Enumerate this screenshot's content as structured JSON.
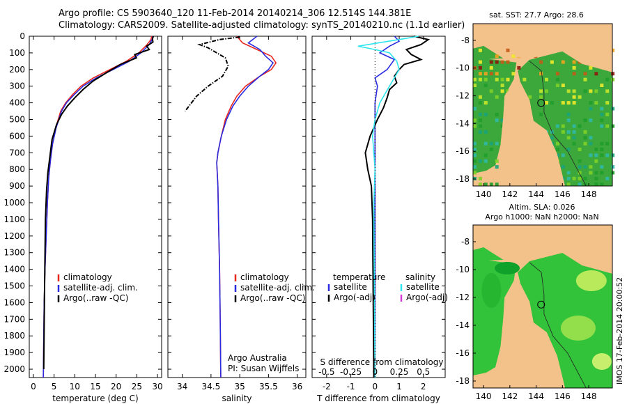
{
  "header": {
    "line1": "Argo profile: CS 5903640_120 11-Feb-2014 20140214_306 12.514S 144.381E",
    "line2": "Climatology: CARS2009. Satellite-adjusted climatology: synTS_20140210.nc (1.1d earlier)"
  },
  "colors": {
    "climatology": "#e8261e",
    "satellite": "#2a2ae0",
    "argo": "#000000",
    "argo_adj_salinity": "#d63ad6",
    "salinity_sat": "#2ee6ee"
  },
  "footer": {
    "timestamp": "IMOS 17-Feb-2014 20:00:52"
  },
  "chart_data": [
    {
      "type": "line",
      "id": "temperature",
      "xlabel": "temperature (deg C)",
      "ylabel": "",
      "xlim": [
        -1,
        31
      ],
      "ylim": [
        2050,
        0
      ],
      "xticks": [
        0,
        5,
        10,
        15,
        20,
        25,
        30
      ],
      "yticks": [
        0,
        100,
        200,
        300,
        400,
        500,
        600,
        700,
        800,
        900,
        1000,
        1100,
        1200,
        1300,
        1400,
        1500,
        1600,
        1700,
        1800,
        1900,
        2000
      ],
      "legend": [
        "climatology",
        "satellite-adj. clim.",
        "Argo(..raw -QC)"
      ],
      "series": [
        {
          "name": "climatology",
          "color": "#e8261e",
          "x": [
            28.6,
            28.4,
            27.5,
            25.5,
            22.5,
            18.5,
            14.5,
            11.5,
            9.5,
            7.8,
            6.6,
            5.4,
            4.6,
            4.1,
            3.7,
            3.4,
            3.1,
            2.8,
            2.6,
            2.5,
            2.4
          ],
          "y": [
            0,
            20,
            50,
            100,
            150,
            200,
            250,
            300,
            350,
            400,
            450,
            550,
            650,
            750,
            850,
            1000,
            1200,
            1400,
            1600,
            1800,
            2050
          ]
        },
        {
          "name": "satellite-adj. clim.",
          "color": "#2a2ae0",
          "x": [
            28.9,
            28.7,
            28.0,
            26.0,
            23.2,
            19.3,
            15.2,
            12.0,
            9.9,
            8.0,
            6.8,
            5.5,
            4.6,
            4.1,
            3.7,
            3.4,
            3.1,
            2.8,
            2.6,
            2.5,
            2.4
          ],
          "y": [
            0,
            20,
            50,
            100,
            150,
            200,
            250,
            300,
            350,
            400,
            450,
            550,
            650,
            750,
            850,
            1000,
            1200,
            1400,
            1600,
            1800,
            2050
          ]
        },
        {
          "name": "Argo(..raw -QC)",
          "color": "#000000",
          "x": [
            29.0,
            28.8,
            28.9,
            27.4,
            28.0,
            24.5,
            24.9,
            21.0,
            17.6,
            14.4,
            12.0,
            10.0,
            8.2,
            6.8,
            5.6,
            4.5,
            4.0,
            3.5,
            3.2,
            2.9,
            2.7,
            2.5
          ],
          "y": [
            0,
            15,
            35,
            60,
            80,
            110,
            130,
            170,
            220,
            270,
            320,
            370,
            420,
            470,
            530,
            620,
            720,
            820,
            920,
            1100,
            1500,
            2000
          ]
        }
      ]
    },
    {
      "type": "line",
      "id": "salinity",
      "xlabel": "salinity",
      "xlim": [
        33.75,
        36.15
      ],
      "ylim": [
        2050,
        0
      ],
      "xticks": [
        34,
        34.5,
        35,
        35.5,
        36
      ],
      "legend": [
        "climatology",
        "satellite-adj. clim.",
        "Argo(..raw -QC)"
      ],
      "annotation": [
        "Argo Australia",
        "PI: Susan Wijffels"
      ],
      "series": [
        {
          "name": "climatology",
          "color": "#e8261e",
          "x": [
            34.95,
            35.05,
            35.3,
            35.55,
            35.63,
            35.55,
            35.35,
            35.1,
            34.95,
            34.85,
            34.75,
            34.68,
            34.62,
            34.6,
            34.62,
            34.63,
            34.65,
            34.66,
            34.67
          ],
          "y": [
            0,
            40,
            80,
            120,
            160,
            200,
            240,
            300,
            360,
            420,
            500,
            600,
            700,
            760,
            900,
            1100,
            1400,
            1700,
            2050
          ]
        },
        {
          "name": "satellite-adj. clim.",
          "color": "#2a2ae0",
          "x": [
            35.3,
            35.15,
            35.35,
            35.45,
            35.58,
            35.5,
            35.35,
            35.15,
            35.0,
            34.88,
            34.77,
            34.68,
            34.62,
            34.6,
            34.62,
            34.63,
            34.65,
            34.66,
            34.67
          ],
          "y": [
            0,
            40,
            80,
            120,
            160,
            200,
            240,
            300,
            360,
            420,
            500,
            600,
            700,
            760,
            900,
            1100,
            1400,
            1700,
            2050
          ]
        },
        {
          "name": "Argo(..raw -QC)",
          "color": "#000000",
          "x": [
            35.0,
            34.65,
            34.3,
            34.45,
            34.6,
            34.75,
            34.8,
            34.7,
            34.45,
            34.25,
            34.05
          ],
          "y": [
            5,
            20,
            50,
            70,
            100,
            130,
            180,
            240,
            300,
            360,
            450
          ]
        }
      ]
    },
    {
      "type": "line",
      "id": "difference",
      "xlabel": "T difference from climatology",
      "xlabel2": "S difference from climatology",
      "xlim": [
        -2.6,
        2.9
      ],
      "ylim": [
        2050,
        0
      ],
      "xticks": [
        -2,
        -1,
        0,
        1,
        2
      ],
      "xticks2_labels": [
        "-0.5",
        "-0.25",
        "0",
        "0.25",
        "0.5"
      ],
      "legend_temperature_title": "temperature",
      "legend_salinity_title": "salinity",
      "legend_temperature": [
        "satellite",
        "Argo(-adj)"
      ],
      "legend_salinity": [
        "satellite",
        "Argo(-adj)"
      ],
      "series": [
        {
          "name": "satellite T",
          "color": "#2a2ae0",
          "x": [
            0.8,
            1.0,
            0.6,
            0.2,
            0.8,
            0.5,
            0.0,
            0.1,
            0.0,
            0.0,
            0.0,
            0.0
          ],
          "y": [
            0,
            30,
            60,
            100,
            140,
            200,
            250,
            300,
            400,
            600,
            1000,
            2050
          ]
        },
        {
          "name": "Argo T",
          "color": "#000000",
          "x": [
            1.6,
            2.2,
            1.9,
            1.3,
            1.5,
            1.9,
            1.2,
            1.0,
            0.8,
            0.9,
            0.6,
            0.5,
            0.35,
            0.1,
            -0.2,
            -0.4,
            -0.3,
            -0.15,
            -0.1,
            -0.05
          ],
          "y": [
            0,
            20,
            50,
            80,
            110,
            140,
            170,
            200,
            240,
            280,
            320,
            370,
            430,
            500,
            600,
            700,
            800,
            900,
            1100,
            2050
          ]
        },
        {
          "name": "satellite S",
          "color": "#2ee6ee",
          "x": [
            1.8,
            1.2,
            -0.7,
            0.0,
            0.6,
            0.9,
            1.0,
            0.6,
            0.2,
            0.0,
            -0.1,
            -0.05,
            0.0,
            -0.05,
            0.0
          ],
          "y": [
            0,
            15,
            60,
            80,
            100,
            150,
            200,
            300,
            400,
            500,
            600,
            700,
            800,
            1000,
            2050
          ]
        }
      ]
    },
    {
      "type": "heatmap",
      "id": "sst-map",
      "title": "sat. SST: 27.7 Argo: 28.6",
      "xlim": [
        139.2,
        149.8
      ],
      "ylim": [
        -18.5,
        -6.8
      ],
      "xticks": [
        140,
        142,
        144,
        146,
        148
      ],
      "yticks": [
        -8,
        -10,
        -12,
        -14,
        -16,
        -18
      ],
      "float_position": {
        "lon": 144.381,
        "lat": -12.514
      }
    },
    {
      "type": "heatmap",
      "id": "sla-map",
      "title": "Altim. SLA: 0.026",
      "subtitle": "Argo h1000: NaN h2000: NaN",
      "xlim": [
        139.2,
        149.8
      ],
      "ylim": [
        -18.5,
        -6.8
      ],
      "xticks": [
        140,
        142,
        144,
        146,
        148
      ],
      "yticks": [
        -8,
        -10,
        -12,
        -14,
        -16,
        -18
      ],
      "float_position": {
        "lon": 144.381,
        "lat": -12.514
      }
    }
  ]
}
